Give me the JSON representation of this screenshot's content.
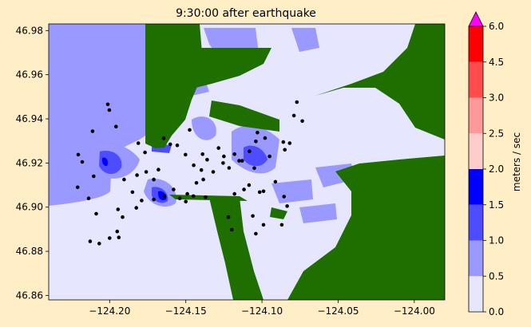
{
  "chart_data": {
    "type": "heatmap",
    "title": "9:30:00 after earthquake",
    "xlim": [
      -124.24,
      -123.98
    ],
    "ylim": [
      46.858,
      46.983
    ],
    "x_ticks": [
      -124.2,
      -124.15,
      -124.1,
      -124.05,
      -124.0
    ],
    "x_tick_labels": [
      "−124.20",
      "−124.15",
      "−124.10",
      "−124.05",
      "−124.00"
    ],
    "y_ticks": [
      46.86,
      46.88,
      46.9,
      46.92,
      46.94,
      46.96,
      46.98
    ],
    "y_tick_labels": [
      "46.86",
      "46.88",
      "46.90",
      "46.92",
      "46.94",
      "46.96",
      "46.98"
    ],
    "colorbar": {
      "label": "meters / sec",
      "levels": [
        0.0,
        0.5,
        1.0,
        1.5,
        2.0,
        2.5,
        3.0,
        4.5,
        6.0
      ],
      "tick_labels": [
        "0.0",
        "0.5",
        "1.0",
        "1.5",
        "2.0",
        "2.5",
        "3.0",
        "4.5",
        "6.0"
      ],
      "colors": [
        "#e6e6ff",
        "#9999ff",
        "#4d4dff",
        "#0000ff",
        "#ffcccc",
        "#ff9999",
        "#ff4d4d",
        "#ff0000"
      ],
      "extend_color": "#ff00ff"
    },
    "land_color": "#1f6e00",
    "grid": false,
    "gauge_points": [
      [
        -124.2206,
        46.9238
      ],
      [
        -124.2112,
        46.9344
      ],
      [
        -124.2012,
        46.9466
      ],
      [
        -124.2002,
        46.944
      ],
      [
        -124.1958,
        46.9365
      ],
      [
        -124.1812,
        46.929
      ],
      [
        -124.1768,
        46.9248
      ],
      [
        -124.1645,
        46.9312
      ],
      [
        -124.1602,
        46.9285
      ],
      [
        -124.1556,
        46.928
      ],
      [
        -124.1475,
        46.935
      ],
      [
        -124.1502,
        46.9238
      ],
      [
        -124.1448,
        46.919
      ],
      [
        -124.139,
        46.924
      ],
      [
        -124.132,
        46.916
      ],
      [
        -124.136,
        46.9215
      ],
      [
        -124.1285,
        46.9268
      ],
      [
        -124.125,
        46.923
      ],
      [
        -124.1216,
        46.9178
      ],
      [
        -124.118,
        46.924
      ],
      [
        -124.113,
        46.921
      ],
      [
        -124.1082,
        46.9253
      ],
      [
        -124.104,
        46.9298
      ],
      [
        -124.103,
        46.9338
      ],
      [
        -124.098,
        46.9313
      ],
      [
        -124.085,
        46.926
      ],
      [
        -124.0818,
        46.929
      ],
      [
        -124.0771,
        46.9476
      ],
      [
        -124.079,
        46.9415
      ],
      [
        -124.0735,
        46.939
      ],
      [
        -124.086,
        46.9295
      ],
      [
        -124.095,
        46.923
      ],
      [
        -124.105,
        46.9177
      ],
      [
        -124.099,
        46.9072
      ],
      [
        -124.0912,
        46.9115
      ],
      [
        -124.0855,
        46.9048
      ],
      [
        -124.0835,
        46.9005
      ],
      [
        -124.087,
        46.892
      ],
      [
        -124.099,
        46.892
      ],
      [
        -124.106,
        46.896
      ],
      [
        -124.1118,
        46.908
      ],
      [
        -124.122,
        46.8955
      ],
      [
        -124.1198,
        46.8898
      ],
      [
        -124.104,
        46.888
      ],
      [
        -124.118,
        46.906
      ],
      [
        -124.15,
        46.9025
      ],
      [
        -124.164,
        46.905
      ],
      [
        -124.171,
        46.9035
      ],
      [
        -124.179,
        46.903
      ],
      [
        -124.1825,
        46.8997
      ],
      [
        -124.1915,
        46.8955
      ],
      [
        -124.1945,
        46.899
      ],
      [
        -124.195,
        46.889
      ],
      [
        -124.194,
        46.8863
      ],
      [
        -124.2,
        46.886
      ],
      [
        -124.2068,
        46.8835
      ],
      [
        -124.2128,
        46.8845
      ],
      [
        -124.2088,
        46.897
      ],
      [
        -124.2138,
        46.904
      ],
      [
        -124.221,
        46.909
      ],
      [
        -124.218,
        46.9205
      ],
      [
        -124.2105,
        46.914
      ],
      [
        -124.1905,
        46.9125
      ],
      [
        -124.185,
        46.9068
      ],
      [
        -124.182,
        46.9145
      ],
      [
        -124.176,
        46.916
      ],
      [
        -124.171,
        46.9125
      ],
      [
        -124.168,
        46.917
      ],
      [
        -124.158,
        46.908
      ],
      [
        -124.154,
        46.904
      ],
      [
        -124.149,
        46.906
      ],
      [
        -124.145,
        46.905
      ],
      [
        -124.143,
        46.911
      ],
      [
        -124.1398,
        46.9168
      ],
      [
        -124.1385,
        46.9125
      ],
      [
        -124.137,
        46.9045
      ],
      [
        -124.1255,
        46.92
      ],
      [
        -124.115,
        46.921
      ],
      [
        -124.1085,
        46.91
      ],
      [
        -124.1015,
        46.9068
      ]
    ]
  }
}
